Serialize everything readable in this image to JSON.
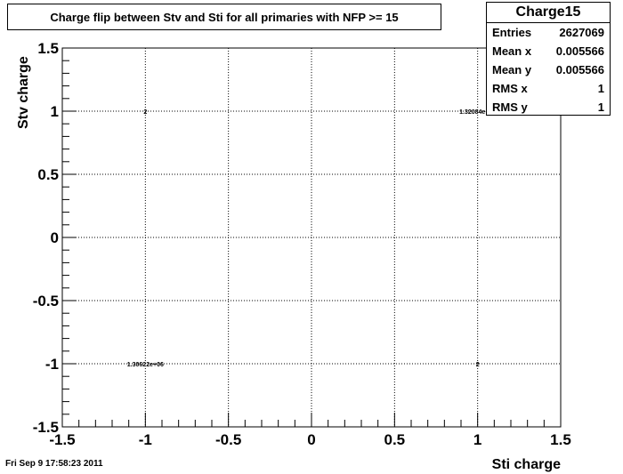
{
  "chart_data": {
    "type": "scatter",
    "title": "Charge flip between Stv and Sti for all primaries with NFP >= 15",
    "xlabel": "Sti charge",
    "ylabel": "Stv charge",
    "xlim": [
      -1.5,
      1.5
    ],
    "ylim": [
      -1.5,
      1.5
    ],
    "xticks": [
      "-1.5",
      "-1",
      "-0.5",
      "0",
      "0.5",
      "1",
      "1.5"
    ],
    "yticks": [
      "-1.5",
      "-1",
      "-0.5",
      "0",
      "0.5",
      "1",
      "1.5"
    ],
    "grid": true,
    "points": [
      {
        "x": -1,
        "y": 1,
        "label": "2"
      },
      {
        "x": 1,
        "y": 1,
        "label": "1.32084e+06"
      },
      {
        "x": -1,
        "y": -1,
        "label": "1.30622e+06"
      },
      {
        "x": 1,
        "y": -1,
        "label": "2"
      }
    ]
  },
  "stats": {
    "title": "Charge15",
    "rows": [
      {
        "label": "Entries",
        "value": "2627069"
      },
      {
        "label": "Mean x",
        "value": "0.005566"
      },
      {
        "label": "Mean y",
        "value": "0.005566"
      },
      {
        "label": "RMS x",
        "value": "1"
      },
      {
        "label": "RMS y",
        "value": "1"
      }
    ]
  },
  "datestamp": "Fri Sep  9 17:58:23 2011"
}
